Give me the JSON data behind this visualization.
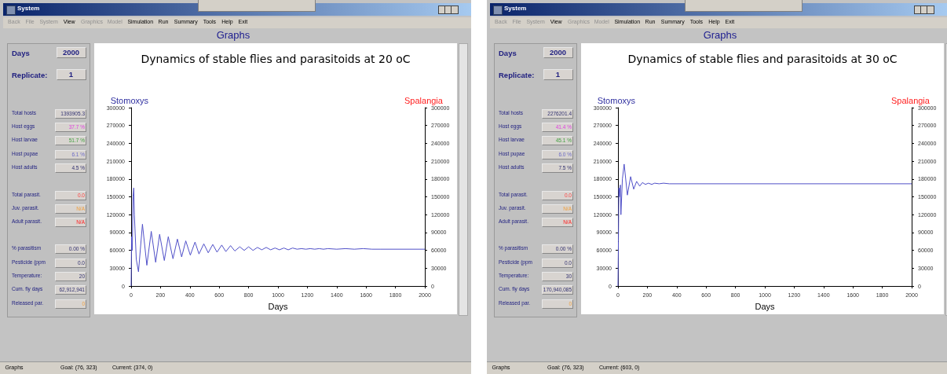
{
  "chart_data": [
    {
      "type": "other",
      "title": "Graphs",
      "annotations": [
        "System",
        "Back",
        "File",
        "System",
        "View",
        "Graphics",
        "Model",
        "Simulation",
        "Run",
        "Summary",
        "Tools",
        "Help",
        "Exit",
        "Days",
        "2000",
        "Replicate:",
        "1",
        "Total hosts",
        "1393905.3",
        "Host eggs",
        "37.7 %",
        "Host larvae",
        "51.7 %",
        "Host pupae",
        "6.1 %",
        "Host adults",
        "4.5 %",
        "Total parasit.",
        "0.0",
        "Juv. parasit.",
        "N/A",
        "Adult parasit.",
        "N/A",
        "% parasitism",
        "0.00 %",
        "Pesticide (ppm",
        "0.0",
        "Temperature:",
        "20",
        "Cum. fly days",
        "62,912,941",
        "Released par.",
        "0",
        "Graphs",
        "Goal: (76, 323)",
        "Current: (374, 0)"
      ]
    },
    {
      "type": "line",
      "title": "Dynamics of stable flies and parasitoids at 20 oC",
      "xlabel": "Days",
      "ylabel": "Stomoxys",
      "y2label": "Spalangia",
      "xlim": [
        0,
        2000
      ],
      "xticks": [
        0,
        200,
        400,
        600,
        800,
        1000,
        1200,
        1400,
        1600,
        1800,
        2000
      ],
      "ylim": [
        0,
        300000
      ],
      "yticks": [
        0,
        30000,
        60000,
        90000,
        120000,
        150000,
        180000,
        210000,
        240000,
        270000,
        300000
      ],
      "y2lim": [
        0,
        300000
      ],
      "y2ticks": [
        0,
        30000,
        60000,
        90000,
        120000,
        150000,
        180000,
        210000,
        240000,
        270000,
        300000
      ],
      "grid": false,
      "marker": "none",
      "line_style": "solid",
      "series": [
        {
          "color": "#5050c8",
          "x": [
            0,
            3,
            8,
            13,
            18,
            22,
            35,
            50,
            77,
            107,
            137,
            167,
            194,
            226,
            253,
            285,
            315,
            344,
            372,
            403,
            435,
            462,
            495,
            525,
            556,
            585,
            617,
            645,
            677,
            706,
            740,
            770,
            800,
            830,
            860,
            890,
            920,
            950,
            980,
            1010,
            1040,
            1070,
            1100,
            1130,
            1160,
            1190,
            1220,
            1250,
            1280,
            1310,
            1340,
            1400,
            1460,
            1520,
            1580,
            1640,
            1700,
            2000
          ],
          "values": [
            0,
            83000,
            60000,
            150000,
            165000,
            120000,
            45000,
            24000,
            104000,
            35000,
            92000,
            40000,
            87000,
            43000,
            83000,
            46000,
            79000,
            49000,
            76000,
            52000,
            74000,
            54000,
            71000,
            56000,
            70000,
            57000,
            69000,
            58000,
            68000,
            59000,
            66000,
            60000,
            66000,
            60000,
            65000,
            61000,
            65000,
            61000,
            64000,
            61000,
            64000,
            61000,
            64000,
            62000,
            63000,
            62000,
            63000,
            62000,
            63000,
            62000,
            63000,
            62000,
            63000,
            62000,
            63000,
            62000,
            62000,
            62000
          ]
        }
      ]
    },
    {
      "type": "other",
      "title": "Graphs",
      "annotations": [
        "System",
        "Back",
        "File",
        "System",
        "View",
        "Graphics",
        "Model",
        "Simulation",
        "Run",
        "Summary",
        "Tools",
        "Help",
        "Exit",
        "Days",
        "2000",
        "Replicate:",
        "1",
        "Total hosts",
        "2276201.4",
        "Host eggs",
        "41.4 %",
        "Host larvae",
        "45.1 %",
        "Host pupae",
        "6.0 %",
        "Host adults",
        "7.5 %",
        "Total parasit.",
        "0.0",
        "Juv. parasit.",
        "N/A",
        "Adult parasit.",
        "N/A",
        "% parasitism",
        "0.00 %",
        "Pesticide (ppm",
        "0.0",
        "Temperature:",
        "30",
        "Cum. fly days",
        "170,940,085",
        "Released par.",
        "0",
        "Graphs",
        "Goal: (76, 323)",
        "Current: (603, 0)"
      ]
    },
    {
      "type": "line",
      "title": "Dynamics of stable flies and parasitoids at 30 oC",
      "xlabel": "Days",
      "ylabel": "Stomoxys",
      "y2label": "Spalangia",
      "xlim": [
        0,
        2000
      ],
      "xticks": [
        0,
        200,
        400,
        600,
        800,
        1000,
        1200,
        1400,
        1600,
        1800,
        2000
      ],
      "ylim": [
        0,
        300000
      ],
      "yticks": [
        0,
        30000,
        60000,
        90000,
        120000,
        150000,
        180000,
        210000,
        240000,
        270000,
        300000
      ],
      "y2lim": [
        0,
        300000
      ],
      "y2ticks": [
        0,
        30000,
        60000,
        90000,
        120000,
        150000,
        180000,
        210000,
        240000,
        270000,
        300000
      ],
      "grid": false,
      "marker": "none",
      "line_style": "solid",
      "series": [
        {
          "color": "#5050c8",
          "x": [
            0,
            3,
            6,
            10,
            16,
            20,
            30,
            42,
            64,
            86,
            107,
            127,
            148,
            166,
            187,
            207,
            230,
            250,
            280,
            310,
            350,
            2000
          ],
          "values": [
            0,
            75000,
            165000,
            150000,
            170000,
            120000,
            180000,
            205000,
            153000,
            184000,
            163000,
            176000,
            168000,
            174000,
            171000,
            173000,
            171000,
            173000,
            172000,
            173000,
            172000,
            172000
          ]
        }
      ]
    }
  ]
}
